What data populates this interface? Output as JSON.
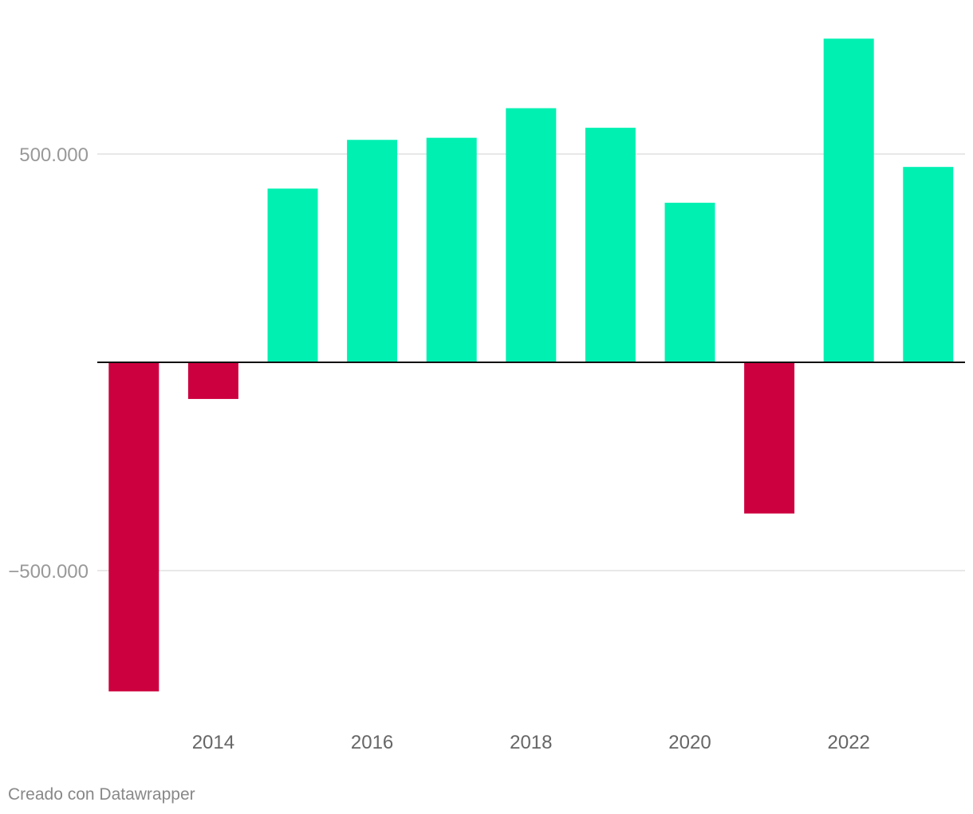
{
  "chart_data": {
    "type": "bar",
    "title": "",
    "xlabel": "",
    "ylabel": "",
    "categories": [
      "2013",
      "2014",
      "2015",
      "2016",
      "2017",
      "2018",
      "2019",
      "2020",
      "2021",
      "2022",
      "2023"
    ],
    "values": [
      -790000,
      -88000,
      417000,
      534000,
      539000,
      610000,
      563000,
      383000,
      -363000,
      777000,
      469000
    ],
    "x_tick_labels": [
      "2014",
      "2016",
      "2018",
      "2020",
      "2022"
    ],
    "y_ticks": [
      500000,
      -500000
    ],
    "y_tick_labels": [
      "500.000",
      "−500.000"
    ],
    "ylim": [
      -840000,
      840000
    ],
    "grid": true,
    "colors": {
      "positive": "#00f0b2",
      "negative": "#cd003f",
      "grid": "#e0e0e0",
      "zero_line": "#111111",
      "tick_text": "#999999",
      "x_tick_text": "#666666"
    }
  },
  "footer": {
    "credit": "Creado con Datawrapper"
  }
}
